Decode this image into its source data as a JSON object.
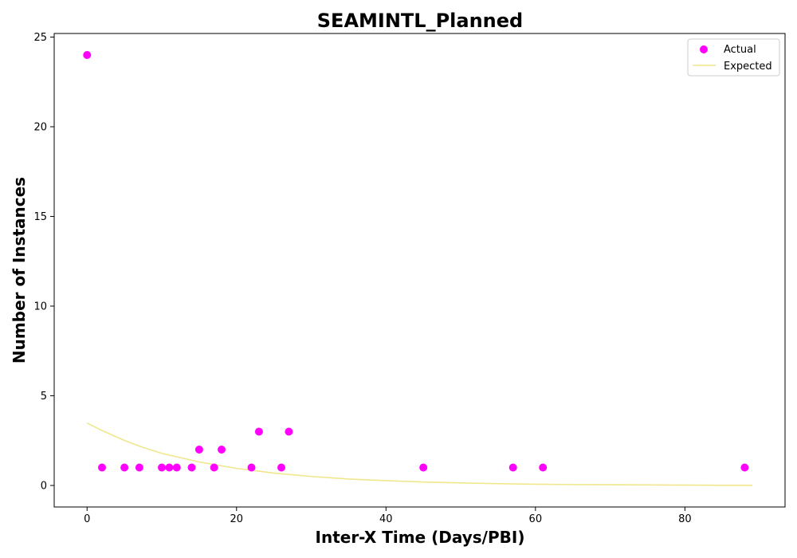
{
  "chart_data": {
    "type": "scatter",
    "title": "SEAMINTL_Planned",
    "xlabel": "Inter-X Time (Days/PBI)",
    "ylabel": "Number of Instances",
    "xlim": [
      -4.4,
      93.4
    ],
    "ylim": [
      -1.2,
      25.2
    ],
    "xticks": [
      0,
      20,
      40,
      60,
      80
    ],
    "yticks": [
      0,
      5,
      10,
      15,
      20,
      25
    ],
    "grid": false,
    "legend_position": "top-right",
    "series": [
      {
        "name": "Actual",
        "kind": "scatter",
        "color": "#ff00ff",
        "x": [
          0,
          2,
          5,
          7,
          10,
          11,
          12,
          14,
          15,
          17,
          18,
          22,
          23,
          26,
          27,
          45,
          57,
          61,
          88
        ],
        "y": [
          24,
          1,
          1,
          1,
          1,
          1,
          1,
          1,
          2,
          1,
          2,
          1,
          3,
          1,
          3,
          1,
          1,
          1,
          1
        ]
      },
      {
        "name": "Expected",
        "kind": "line",
        "color": "#f0e68c",
        "x": [
          0,
          2,
          5,
          7,
          10,
          15,
          20,
          25,
          30,
          35,
          40,
          45,
          50,
          55,
          60,
          65,
          70,
          75,
          80,
          85,
          89
        ],
        "y": [
          3.48,
          3.06,
          2.51,
          2.19,
          1.79,
          1.31,
          0.95,
          0.69,
          0.5,
          0.36,
          0.27,
          0.19,
          0.14,
          0.1,
          0.07,
          0.05,
          0.04,
          0.03,
          0.02,
          0.01,
          0.01
        ]
      }
    ]
  }
}
